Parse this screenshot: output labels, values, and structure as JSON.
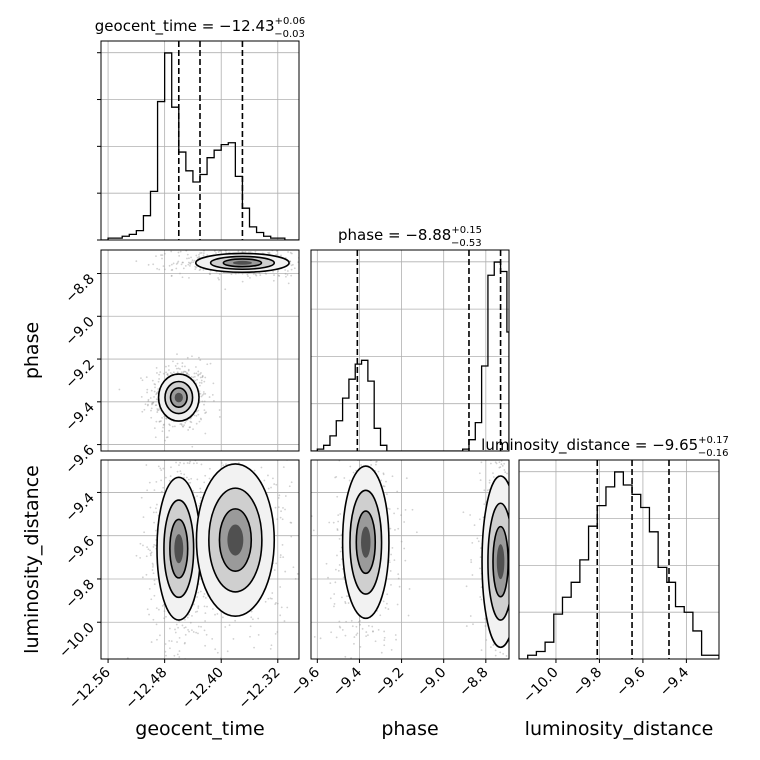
{
  "chart_data": {
    "type": "corner",
    "parameters": [
      {
        "name": "geocent_time",
        "axis_label": "geocent_time",
        "title": "geocent_time = −12.43",
        "title_sup": "+0.06",
        "title_sub": "−0.03",
        "median": -12.43,
        "err_plus": 0.06,
        "err_minus": 0.03,
        "quantile_lines": [
          -12.46,
          -12.43,
          -12.37
        ],
        "range": [
          -12.57,
          -12.29
        ],
        "ticks": [
          -12.56,
          -12.48,
          -12.4,
          -12.32
        ],
        "tick_labels": [
          "−12.56",
          "−12.48",
          "−12.40",
          "−12.32"
        ]
      },
      {
        "name": "phase",
        "axis_label": "phase",
        "title": "phase = −8.88",
        "title_sup": "+0.15",
        "title_sub": "−0.53",
        "median": -8.88,
        "err_plus": 0.15,
        "err_minus": 0.53,
        "quantile_lines": [
          -9.41,
          -8.88,
          -8.73
        ],
        "range": [
          -9.63,
          -8.69
        ],
        "ticks": [
          -9.6,
          -9.4,
          -9.2,
          -9.0,
          -8.8
        ],
        "tick_labels": [
          "−9.6",
          "−9.4",
          "−9.2",
          "−9.0",
          "−8.8"
        ]
      },
      {
        "name": "luminosity_distance",
        "axis_label": "luminosity_distance",
        "title": "luminosity_distance = −9.65",
        "title_sup": "+0.17",
        "title_sub": "−0.16",
        "median": -9.65,
        "err_plus": 0.17,
        "err_minus": 0.16,
        "quantile_lines": [
          -9.81,
          -9.65,
          -9.48
        ],
        "range": [
          -10.17,
          -9.25
        ],
        "ticks": [
          -10.0,
          -9.8,
          -9.6,
          -9.4
        ],
        "tick_labels": [
          "−10.0",
          "−9.8",
          "−9.6",
          "−9.4"
        ]
      }
    ],
    "histograms": {
      "geocent_time": {
        "bin_edges": [
          -12.57,
          -12.56,
          -12.55,
          -12.54,
          -12.53,
          -12.52,
          -12.51,
          -12.5,
          -12.49,
          -12.48,
          -12.47,
          -12.46,
          -12.45,
          -12.44,
          -12.43,
          -12.42,
          -12.41,
          -12.4,
          -12.39,
          -12.38,
          -12.37,
          -12.36,
          -12.35,
          -12.34,
          -12.33,
          -12.32,
          -12.31,
          -12.3,
          -12.29
        ],
        "counts": [
          0,
          0.01,
          0.01,
          0.02,
          0.03,
          0.05,
          0.13,
          0.26,
          0.74,
          1.0,
          0.71,
          0.47,
          0.37,
          0.31,
          0.35,
          0.44,
          0.48,
          0.51,
          0.52,
          0.34,
          0.17,
          0.07,
          0.04,
          0.02,
          0.01,
          0.01,
          0,
          0
        ]
      },
      "phase": {
        "bin_edges": [
          -9.63,
          -9.6,
          -9.57,
          -9.54,
          -9.51,
          -9.48,
          -9.45,
          -9.42,
          -9.39,
          -9.36,
          -9.33,
          -9.3,
          -9.27,
          -9.24,
          -9.21,
          -9.18,
          -9.15,
          -9.12,
          -9.09,
          -9.06,
          -9.03,
          -9.0,
          -8.97,
          -8.94,
          -8.91,
          -8.88,
          -8.85,
          -8.82,
          -8.79,
          -8.76,
          -8.73,
          -8.7,
          -8.69
        ],
        "counts": [
          0,
          0.01,
          0.03,
          0.08,
          0.16,
          0.28,
          0.38,
          0.46,
          0.48,
          0.37,
          0.12,
          0.03,
          0,
          0,
          0,
          0,
          0,
          0,
          0,
          0,
          0,
          0,
          0,
          0,
          0.01,
          0.06,
          0.15,
          0.45,
          0.93,
          1.0,
          0.95,
          0.63
        ]
      },
      "luminosity_distance": {
        "bin_edges": [
          -10.17,
          -10.13,
          -10.09,
          -10.05,
          -10.01,
          -9.97,
          -9.93,
          -9.89,
          -9.85,
          -9.81,
          -9.77,
          -9.73,
          -9.69,
          -9.65,
          -9.61,
          -9.57,
          -9.53,
          -9.49,
          -9.45,
          -9.41,
          -9.37,
          -9.33,
          -9.29,
          -9.25
        ],
        "counts": [
          0,
          0.02,
          0.04,
          0.09,
          0.24,
          0.33,
          0.41,
          0.53,
          0.71,
          0.82,
          0.92,
          1.0,
          0.93,
          0.88,
          0.81,
          0.68,
          0.49,
          0.41,
          0.28,
          0.25,
          0.15,
          0.02,
          0.02
        ]
      }
    },
    "posterior_modes": {
      "phase_vs_geocent_time": [
        {
          "x": -12.46,
          "y": -9.38,
          "sx": 0.013,
          "sy": 0.05
        },
        {
          "x": -12.37,
          "y": -8.75,
          "sx": 0.03,
          "sy": 0.02
        }
      ],
      "luminosity_distance_vs_geocent_time": [
        {
          "x": -12.46,
          "y": -9.66,
          "sx": 0.014,
          "sy": 0.15
        },
        {
          "x": -12.38,
          "y": -9.62,
          "sx": 0.025,
          "sy": 0.16
        }
      ],
      "luminosity_distance_vs_phase": [
        {
          "x": -9.37,
          "y": -9.63,
          "sx": 0.05,
          "sy": 0.16
        },
        {
          "x": -8.73,
          "y": -9.72,
          "sx": 0.04,
          "sy": 0.18
        }
      ]
    },
    "grid": true,
    "quantile_line_style": "dashed"
  }
}
